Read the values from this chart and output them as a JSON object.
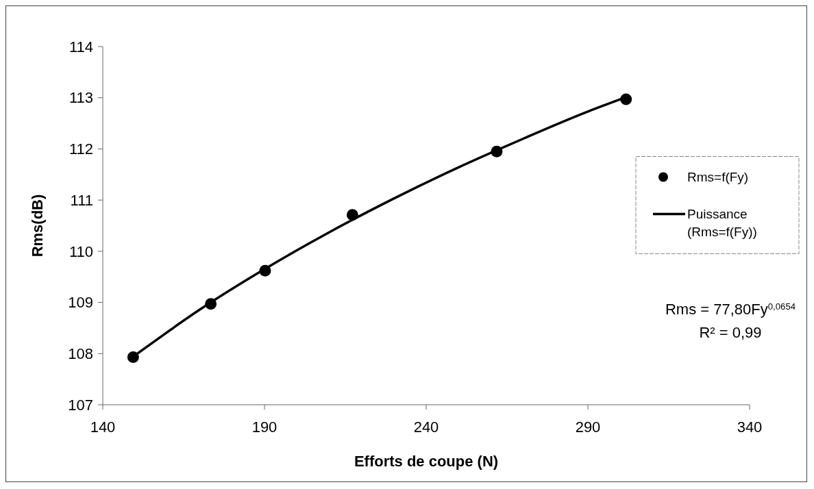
{
  "chart_data": {
    "type": "scatter",
    "xlabel": "Efforts de coupe (N)",
    "ylabel": "Rms(dB)",
    "xlim": [
      140,
      340
    ],
    "xticks": [
      140,
      190,
      240,
      290,
      340
    ],
    "ylim": [
      107,
      114
    ],
    "yticks": [
      107,
      108,
      109,
      110,
      111,
      112,
      113,
      114
    ],
    "grid": false,
    "legend": "right",
    "series": [
      {
        "name": "Rms=f(Fy)",
        "marker": "circle",
        "color": "#000000",
        "x": [
          149.4,
          173.4,
          190.2,
          217.2,
          261.8,
          301.8
        ],
        "values": [
          107.93,
          108.97,
          109.62,
          110.71,
          111.95,
          112.97
        ]
      },
      {
        "name": "Puissance (Rms=f(Fy))",
        "type": "line",
        "marker": "none",
        "line_style": "solid",
        "color": "#000000",
        "x": [
          149.4,
          170,
          190,
          210,
          230,
          250,
          270,
          290,
          301.8
        ],
        "values": [
          107.94,
          108.86,
          109.65,
          110.37,
          111.03,
          111.64,
          112.2,
          112.73,
          113.01
        ]
      }
    ],
    "annotations": [
      "Rms = 77,80Fy$^{0,0654}$",
      "R² = 0,99"
    ]
  }
}
